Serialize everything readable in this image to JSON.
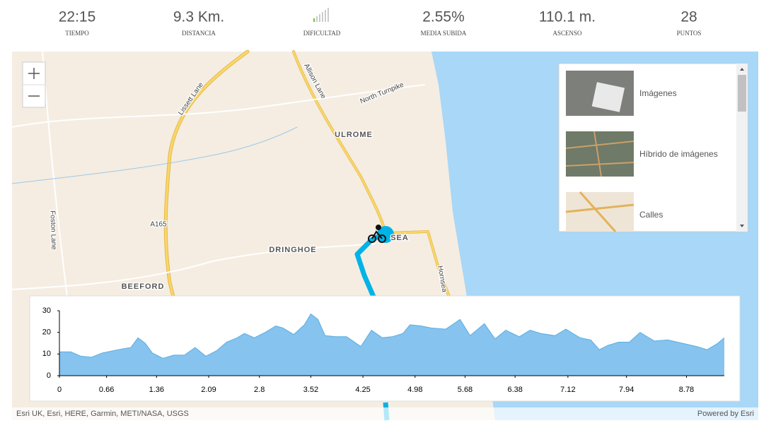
{
  "stats": [
    {
      "value": "22:15",
      "label": "TIEMPO"
    },
    {
      "value": "9.3 Km.",
      "label": "DISTANCIA"
    },
    {
      "label": "DIFICULTAD"
    },
    {
      "value": "2.55%",
      "label": "MEDIA SUBIDA"
    },
    {
      "value": "110.1 m.",
      "label": "ASCENSO"
    },
    {
      "value": "28",
      "label": "PUNTOS"
    }
  ],
  "map_labels": [
    "ULROME",
    "DRINGHOE",
    "BEEFORD",
    "SEA",
    "Lissett Lane",
    "Allison Lane",
    "North Turnpike",
    "Foston Lane",
    "A165",
    "Hornsea"
  ],
  "basemaps": [
    "Imágenes",
    "Híbrido de imágenes",
    "Calles"
  ],
  "attribution": "Esri UK, Esri, HERE, Garmin, METI/NASA, USGS",
  "powered_by": "Powered by Esri",
  "chart_data": {
    "type": "area",
    "x": [
      0,
      0.16,
      0.3,
      0.45,
      0.6,
      0.75,
      0.9,
      1.0,
      1.1,
      1.2,
      1.3,
      1.45,
      1.6,
      1.75,
      1.9,
      2.05,
      2.2,
      2.34,
      2.49,
      2.59,
      2.73,
      2.88,
      3.03,
      3.13,
      3.28,
      3.43,
      3.52,
      3.62,
      3.72,
      3.87,
      4.02,
      4.22,
      4.37,
      4.52,
      4.66,
      4.81,
      4.91,
      5.06,
      5.21,
      5.41,
      5.61,
      5.75,
      5.95,
      6.1,
      6.25,
      6.44,
      6.59,
      6.74,
      6.94,
      7.09,
      7.29,
      7.44,
      7.56,
      7.68,
      7.83,
      7.98,
      8.13,
      8.33,
      8.52,
      8.72,
      8.92,
      9.07,
      9.22,
      9.31
    ],
    "values": [
      11,
      11,
      9,
      8.5,
      10.5,
      11.5,
      12.5,
      13,
      17.5,
      15,
      10.5,
      8,
      9.5,
      9.5,
      13,
      9,
      11.5,
      15.5,
      17.5,
      19.5,
      17.5,
      20,
      23,
      22,
      19,
      23.5,
      28.5,
      26,
      18.5,
      18,
      18,
      13.5,
      21,
      17.5,
      18,
      19.5,
      23.5,
      23,
      22,
      21.5,
      26,
      18.5,
      24,
      17,
      21,
      18,
      21,
      19.5,
      18.5,
      21.5,
      17.5,
      16.5,
      12,
      14,
      15.5,
      15.5,
      20,
      16,
      16.5,
      15,
      13.5,
      12,
      15,
      17.5
    ],
    "xlim": [
      0,
      9.31
    ],
    "ylim": [
      0,
      30
    ],
    "xticks": [
      0,
      0.66,
      1.36,
      2.09,
      2.8,
      3.52,
      4.25,
      4.98,
      5.68,
      6.38,
      7.12,
      7.94,
      8.78
    ],
    "yticks": [
      0,
      10,
      20,
      30
    ],
    "color": "#86c3ee",
    "line_color": "#5aaee2"
  }
}
